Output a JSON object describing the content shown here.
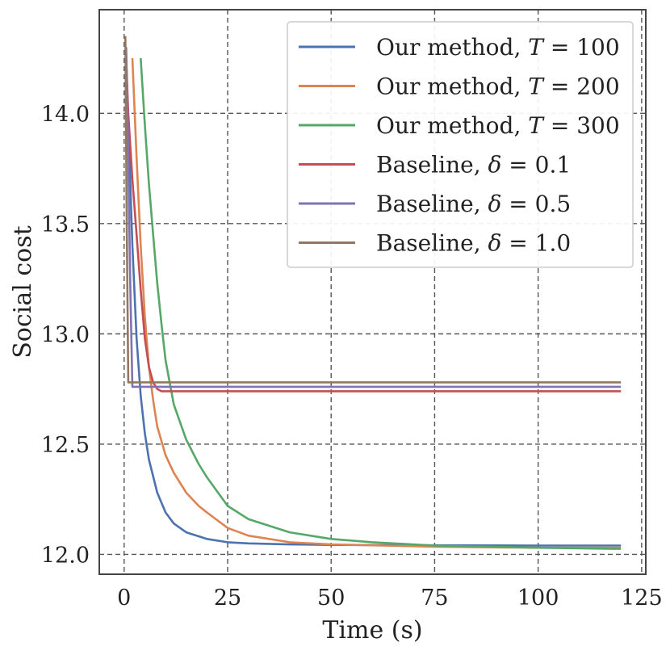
{
  "chart_data": {
    "type": "line",
    "xlabel": "Time (s)",
    "ylabel": "Social cost",
    "xlim": [
      -6,
      126
    ],
    "ylim": [
      11.91,
      14.47
    ],
    "x_ticks": [
      0,
      25,
      50,
      75,
      100,
      125
    ],
    "x_tick_labels": [
      "0",
      "25",
      "50",
      "75",
      "100",
      "125"
    ],
    "y_ticks": [
      12.0,
      12.5,
      13.0,
      13.5,
      14.0
    ],
    "y_tick_labels": [
      "12.0",
      "12.5",
      "13.0",
      "13.5",
      "14.0"
    ],
    "grid": true,
    "legend_position": "top-right",
    "series": [
      {
        "name": "Our method, T = 100",
        "legend_prefix": "Our method, ",
        "legend_var": "T",
        "legend_val": "100",
        "color": "#4c72b0",
        "x": [
          0.5,
          1,
          2,
          3,
          4,
          5,
          6,
          8,
          10,
          12,
          15,
          20,
          25,
          30,
          40,
          50,
          75,
          100,
          120
        ],
        "y": [
          14.25,
          13.95,
          13.4,
          12.98,
          12.72,
          12.55,
          12.43,
          12.28,
          12.19,
          12.14,
          12.1,
          12.07,
          12.055,
          12.05,
          12.045,
          12.043,
          12.041,
          12.04,
          12.04
        ]
      },
      {
        "name": "Our method, T = 200",
        "legend_prefix": "Our method, ",
        "legend_var": "T",
        "legend_val": "200",
        "color": "#dd8452",
        "x": [
          2,
          3,
          4,
          5,
          6,
          7,
          8,
          10,
          12,
          15,
          18,
          20,
          25,
          30,
          40,
          50,
          75,
          100,
          120
        ],
        "y": [
          14.25,
          13.8,
          13.4,
          13.08,
          12.85,
          12.7,
          12.58,
          12.45,
          12.37,
          12.28,
          12.22,
          12.19,
          12.12,
          12.085,
          12.055,
          12.045,
          12.035,
          12.03,
          12.03
        ]
      },
      {
        "name": "Our method, T = 300",
        "legend_prefix": "Our method, ",
        "legend_var": "T",
        "legend_val": "300",
        "color": "#55a868",
        "x": [
          4,
          5,
          6,
          7,
          8,
          9,
          10,
          12,
          15,
          18,
          20,
          25,
          30,
          40,
          50,
          60,
          75,
          100,
          120
        ],
        "y": [
          14.25,
          13.95,
          13.68,
          13.45,
          13.23,
          13.05,
          12.88,
          12.68,
          12.52,
          12.41,
          12.35,
          12.22,
          12.16,
          12.1,
          12.07,
          12.055,
          12.04,
          12.03,
          12.025
        ]
      },
      {
        "name": "Baseline, δ = 0.1",
        "legend_prefix": "Baseline, ",
        "legend_var": "δ",
        "legend_val": "0.1",
        "color": "#c44e52",
        "x": [
          0.5,
          1,
          2,
          3,
          4,
          5,
          6,
          7,
          8,
          9,
          120
        ],
        "y": [
          14.25,
          14.0,
          13.7,
          13.45,
          13.2,
          12.98,
          12.85,
          12.78,
          12.75,
          12.74,
          12.74
        ]
      },
      {
        "name": "Baseline, δ = 0.5",
        "legend_prefix": "Baseline, ",
        "legend_var": "δ",
        "legend_val": "0.5",
        "color": "#8172b3",
        "x": [
          0.5,
          1,
          1.5,
          2,
          120
        ],
        "y": [
          14.3,
          13.8,
          13.2,
          12.76,
          12.76
        ]
      },
      {
        "name": "Baseline, δ = 1.0",
        "legend_prefix": "Baseline, ",
        "legend_var": "δ",
        "legend_val": "1.0",
        "color": "#937860",
        "x": [
          0.3,
          0.6,
          1,
          120
        ],
        "y": [
          14.35,
          13.6,
          12.78,
          12.78
        ]
      }
    ]
  }
}
